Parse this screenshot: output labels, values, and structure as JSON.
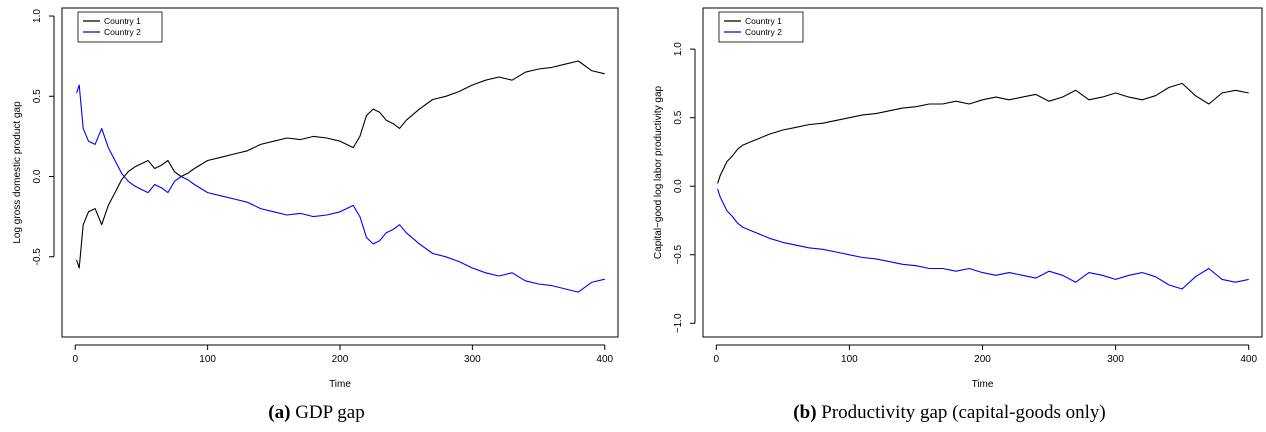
{
  "chart_data": [
    {
      "type": "line",
      "xlabel": "Time",
      "ylabel": "Log gross domestic product gap",
      "xlim": [
        -10,
        410
      ],
      "ylim": [
        -1.0,
        1.05
      ],
      "xticks": [
        0,
        100,
        200,
        300,
        400
      ],
      "yticks": [
        -0.5,
        0.0,
        0.5,
        1.0
      ],
      "ytick_labels": [
        "-0.5",
        "0.0",
        "0.5",
        "1.0"
      ],
      "legend_position": "top-left",
      "series": [
        {
          "name": "Country 1",
          "color": "#000000",
          "x": [
            1,
            3,
            6,
            10,
            15,
            20,
            25,
            30,
            35,
            40,
            45,
            50,
            55,
            60,
            65,
            70,
            75,
            80,
            85,
            90,
            100,
            110,
            120,
            130,
            140,
            150,
            160,
            170,
            180,
            190,
            200,
            205,
            210,
            215,
            220,
            225,
            230,
            235,
            240,
            245,
            250,
            260,
            270,
            280,
            290,
            300,
            310,
            320,
            330,
            340,
            350,
            360,
            370,
            380,
            390,
            400
          ],
          "y": [
            -0.52,
            -0.57,
            -0.3,
            -0.22,
            -0.2,
            -0.3,
            -0.18,
            -0.1,
            -0.02,
            0.03,
            0.06,
            0.08,
            0.1,
            0.05,
            0.07,
            0.1,
            0.03,
            0.0,
            0.02,
            0.05,
            0.1,
            0.12,
            0.14,
            0.16,
            0.2,
            0.22,
            0.24,
            0.23,
            0.25,
            0.24,
            0.22,
            0.2,
            0.18,
            0.25,
            0.38,
            0.42,
            0.4,
            0.35,
            0.33,
            0.3,
            0.35,
            0.42,
            0.48,
            0.5,
            0.53,
            0.57,
            0.6,
            0.62,
            0.6,
            0.65,
            0.67,
            0.68,
            0.7,
            0.72,
            0.66,
            0.64
          ]
        },
        {
          "name": "Country 2",
          "color": "#0000ff",
          "x": [
            1,
            3,
            6,
            10,
            15,
            20,
            25,
            30,
            35,
            40,
            45,
            50,
            55,
            60,
            65,
            70,
            75,
            80,
            85,
            90,
            100,
            110,
            120,
            130,
            140,
            150,
            160,
            170,
            180,
            190,
            200,
            205,
            210,
            215,
            220,
            225,
            230,
            235,
            240,
            245,
            250,
            260,
            270,
            280,
            290,
            300,
            310,
            320,
            330,
            340,
            350,
            360,
            370,
            380,
            390,
            400
          ],
          "y": [
            0.52,
            0.57,
            0.3,
            0.22,
            0.2,
            0.3,
            0.18,
            0.1,
            0.02,
            -0.03,
            -0.06,
            -0.08,
            -0.1,
            -0.05,
            -0.07,
            -0.1,
            -0.03,
            0.0,
            -0.02,
            -0.05,
            -0.1,
            -0.12,
            -0.14,
            -0.16,
            -0.2,
            -0.22,
            -0.24,
            -0.23,
            -0.25,
            -0.24,
            -0.22,
            -0.2,
            -0.18,
            -0.25,
            -0.38,
            -0.42,
            -0.4,
            -0.35,
            -0.33,
            -0.3,
            -0.35,
            -0.42,
            -0.48,
            -0.5,
            -0.53,
            -0.57,
            -0.6,
            -0.62,
            -0.6,
            -0.65,
            -0.67,
            -0.68,
            -0.7,
            -0.72,
            -0.66,
            -0.64
          ]
        }
      ]
    },
    {
      "type": "line",
      "xlabel": "Time",
      "ylabel": "Capital−good log labor productivity gap",
      "xlim": [
        -10,
        410
      ],
      "ylim": [
        -1.1,
        1.3
      ],
      "xticks": [
        0,
        100,
        200,
        300,
        400
      ],
      "yticks": [
        -1.0,
        -0.5,
        0.0,
        0.5,
        1.0
      ],
      "ytick_labels": [
        "−1.0",
        "−0.5",
        "0.0",
        "0.5",
        "1.0"
      ],
      "legend_position": "top-left",
      "series": [
        {
          "name": "Country 1",
          "color": "#000000",
          "x": [
            1,
            3,
            5,
            8,
            12,
            16,
            20,
            25,
            30,
            40,
            50,
            60,
            70,
            80,
            90,
            100,
            110,
            120,
            130,
            140,
            150,
            160,
            170,
            180,
            190,
            200,
            210,
            220,
            230,
            240,
            250,
            260,
            270,
            280,
            290,
            300,
            310,
            320,
            330,
            340,
            350,
            360,
            370,
            380,
            390,
            400
          ],
          "y": [
            0.02,
            0.08,
            0.12,
            0.18,
            0.22,
            0.27,
            0.3,
            0.32,
            0.34,
            0.38,
            0.41,
            0.43,
            0.45,
            0.46,
            0.48,
            0.5,
            0.52,
            0.53,
            0.55,
            0.57,
            0.58,
            0.6,
            0.6,
            0.62,
            0.6,
            0.63,
            0.65,
            0.63,
            0.65,
            0.67,
            0.62,
            0.65,
            0.7,
            0.63,
            0.65,
            0.68,
            0.65,
            0.63,
            0.66,
            0.72,
            0.75,
            0.66,
            0.6,
            0.68,
            0.7,
            0.68
          ]
        },
        {
          "name": "Country 2",
          "color": "#0000ff",
          "x": [
            1,
            3,
            5,
            8,
            12,
            16,
            20,
            25,
            30,
            40,
            50,
            60,
            70,
            80,
            90,
            100,
            110,
            120,
            130,
            140,
            150,
            160,
            170,
            180,
            190,
            200,
            210,
            220,
            230,
            240,
            250,
            260,
            270,
            280,
            290,
            300,
            310,
            320,
            330,
            340,
            350,
            360,
            370,
            380,
            390,
            400
          ],
          "y": [
            -0.02,
            -0.08,
            -0.12,
            -0.18,
            -0.22,
            -0.27,
            -0.3,
            -0.32,
            -0.34,
            -0.38,
            -0.41,
            -0.43,
            -0.45,
            -0.46,
            -0.48,
            -0.5,
            -0.52,
            -0.53,
            -0.55,
            -0.57,
            -0.58,
            -0.6,
            -0.6,
            -0.62,
            -0.6,
            -0.63,
            -0.65,
            -0.63,
            -0.65,
            -0.67,
            -0.62,
            -0.65,
            -0.7,
            -0.63,
            -0.65,
            -0.68,
            -0.65,
            -0.63,
            -0.66,
            -0.72,
            -0.75,
            -0.66,
            -0.6,
            -0.68,
            -0.7,
            -0.68
          ]
        }
      ]
    }
  ],
  "captions": [
    {
      "letter": "(a)",
      "text": " GDP gap"
    },
    {
      "letter": "(b)",
      "text": " Productivity gap (capital-goods only)"
    }
  ]
}
